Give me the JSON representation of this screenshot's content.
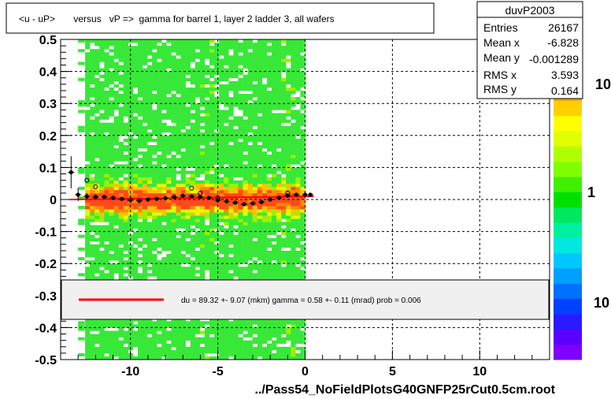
{
  "chart_data": {
    "type": "scatter",
    "title": "<u - uP>       versus   vP =>  gamma for barrel 1, layer 2 ladder 3, all wafers",
    "xlabel": "../Pass54_NoFieldPlotsG40GNFP25rCut0.5cm.root",
    "ylabel": "",
    "xlim": [
      -14,
      14
    ],
    "ylim": [
      -0.5,
      0.5
    ],
    "x_ticks": [
      -10,
      -5,
      0,
      5,
      10
    ],
    "y_ticks": [
      -0.5,
      -0.4,
      -0.3,
      -0.2,
      -0.1,
      0,
      0.1,
      0.2,
      0.3,
      0.4,
      0.5
    ],
    "x_tick_labels": [
      "-10",
      "-5",
      "0",
      "5",
      "10"
    ],
    "y_tick_labels": [
      "-0.5",
      "-0.4",
      "-0.3",
      "-0.2",
      "-0.1",
      "0",
      "0.1",
      "0.2",
      "0.3",
      "0.4",
      "0.5"
    ],
    "grid": true,
    "heatmap_x_range": [
      -12.6,
      0.0
    ],
    "profile_points": {
      "x": [
        -13.4,
        -13.0,
        -12.5,
        -12.0,
        -11.5,
        -11.0,
        -10.5,
        -10.0,
        -9.5,
        -9.0,
        -8.5,
        -8.0,
        -7.5,
        -7.0,
        -6.5,
        -6.0,
        -5.5,
        -5.0,
        -4.5,
        -4.0,
        -3.5,
        -3.0,
        -2.5,
        -2.0,
        -1.5,
        -1.0,
        -0.5,
        0.0,
        0.3
      ],
      "y": [
        0.085,
        0.015,
        0.01,
        0.008,
        0.008,
        0.005,
        0.002,
        -0.002,
        -0.004,
        0.0,
        0.002,
        0.004,
        0.008,
        0.012,
        0.01,
        0.008,
        0.005,
        -0.002,
        -0.006,
        -0.01,
        -0.015,
        -0.012,
        -0.008,
        0.0,
        0.005,
        0.012,
        0.015,
        0.015,
        0.015
      ],
      "err": [
        0.05,
        0.02,
        0.01,
        0.008,
        0.006,
        0.005,
        0.005,
        0.005,
        0.005,
        0.005,
        0.005,
        0.005,
        0.005,
        0.005,
        0.005,
        0.005,
        0.005,
        0.005,
        0.005,
        0.005,
        0.005,
        0.005,
        0.005,
        0.005,
        0.005,
        0.005,
        0.005,
        0.006,
        0.006
      ]
    },
    "open_points": {
      "x": [
        -12.5,
        -12.0,
        -6.5,
        -6.0,
        -5.0,
        -1.0
      ],
      "y": [
        0.06,
        0.04,
        0.035,
        0.02,
        0.005,
        0.02
      ]
    },
    "fit_line": {
      "x": [
        -13.5,
        0.5
      ],
      "y": [
        0.0,
        0.01
      ],
      "color": "#ff0000"
    },
    "stats": {
      "name": "duvP2003",
      "rows": [
        {
          "label": "Entries",
          "value": "26167"
        },
        {
          "label": "Mean x",
          "value": "-6.828"
        },
        {
          "label": "Mean y",
          "value": "-0.001289"
        },
        {
          "label": "RMS x",
          "value": "3.593"
        },
        {
          "label": "RMS y",
          "value": "0.164"
        }
      ]
    },
    "legend": {
      "placement": "lower-center",
      "text": "du =   89.32 +-  9.07 (mkm) gamma =    0.58 +-  0.11 (mrad) prob = 0.006"
    },
    "palette": {
      "labels": [
        "10",
        "1",
        "10"
      ],
      "colors": [
        "#7f00ff",
        "#5a00ff",
        "#2a1aff",
        "#0040ff",
        "#0070ff",
        "#00a0ff",
        "#00c8ff",
        "#00e8e0",
        "#00f0a0",
        "#00e860",
        "#00e000",
        "#40f000",
        "#80ff00",
        "#b0ff00",
        "#e0ff00",
        "#ffff00",
        "#ffd000",
        "#ffa000",
        "#ff7000",
        "#ff4000",
        "#ff0000"
      ]
    }
  }
}
